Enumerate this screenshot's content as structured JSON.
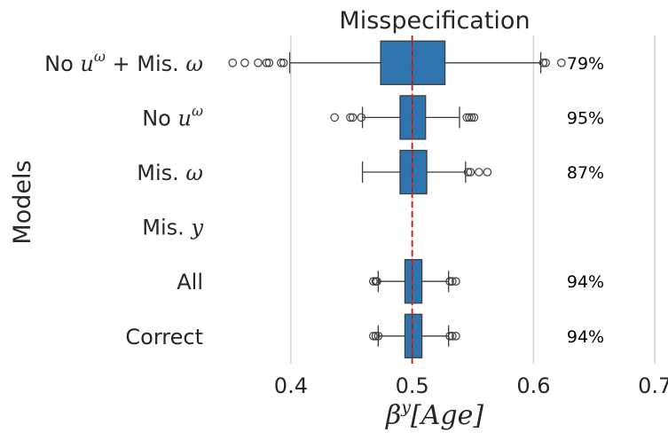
{
  "chart_data": {
    "type": "box",
    "orientation": "horizontal",
    "title": "Misspecification",
    "xlabel": {
      "base": "β",
      "superscript": "y",
      "bracket": "[Age]"
    },
    "ylabel": "Models",
    "xlim": [
      0.335,
      0.705
    ],
    "xticks": [
      0.4,
      0.5,
      0.6,
      0.7
    ],
    "xtick_labels": [
      "0.4",
      "0.5",
      "0.6",
      "0.7"
    ],
    "grid": "x",
    "reference_line": {
      "x": 0.5,
      "color": "#c0282a",
      "style": "dashed"
    },
    "box_color": "#2e75b0",
    "categories": [
      {
        "label_parts": [
          {
            "t": "No "
          },
          {
            "t": "u",
            "i": true
          },
          {
            "t": "ω",
            "sup": true
          },
          {
            "t": " + Mis. "
          },
          {
            "t": "ω",
            "i": true
          }
        ],
        "whisker_low": 0.399,
        "q1": 0.474,
        "median": 0.5,
        "q3": 0.527,
        "whisker_high": 0.606,
        "outliers": [
          0.352,
          0.362,
          0.373,
          0.38,
          0.382,
          0.392,
          0.394,
          0.608,
          0.61,
          0.623
        ],
        "coverage": "79%"
      },
      {
        "label_parts": [
          {
            "t": "No "
          },
          {
            "t": "u",
            "i": true
          },
          {
            "t": "ω",
            "sup": true
          }
        ],
        "whisker_low": 0.459,
        "q1": 0.49,
        "median": 0.5,
        "q3": 0.511,
        "whisker_high": 0.539,
        "outliers": [
          0.436,
          0.449,
          0.451,
          0.458,
          0.545,
          0.547,
          0.549,
          0.551
        ],
        "coverage": "95%"
      },
      {
        "label_parts": [
          {
            "t": "Mis. "
          },
          {
            "t": "ω",
            "i": true
          }
        ],
        "whisker_low": 0.459,
        "q1": 0.49,
        "median": 0.5,
        "q3": 0.512,
        "whisker_high": 0.544,
        "outliers": [
          0.546,
          0.548,
          0.555,
          0.562
        ],
        "coverage": "87%"
      },
      {
        "label_parts": [
          {
            "t": "Mis. "
          },
          {
            "t": "y",
            "i": true
          }
        ],
        "whisker_low": null,
        "q1": null,
        "median": null,
        "q3": null,
        "whisker_high": null,
        "outliers": [],
        "coverage": ""
      },
      {
        "label_parts": [
          {
            "t": "All"
          }
        ],
        "whisker_low": 0.472,
        "q1": 0.494,
        "median": 0.5,
        "q3": 0.508,
        "whisker_high": 0.53,
        "outliers": [
          0.468,
          0.47,
          0.471,
          0.531,
          0.533,
          0.536
        ],
        "coverage": "94%"
      },
      {
        "label_parts": [
          {
            "t": "Correct"
          }
        ],
        "whisker_low": 0.472,
        "q1": 0.494,
        "median": 0.5,
        "q3": 0.508,
        "whisker_high": 0.53,
        "outliers": [
          0.468,
          0.47,
          0.472,
          0.531,
          0.533,
          0.536
        ],
        "coverage": "94%"
      }
    ]
  }
}
